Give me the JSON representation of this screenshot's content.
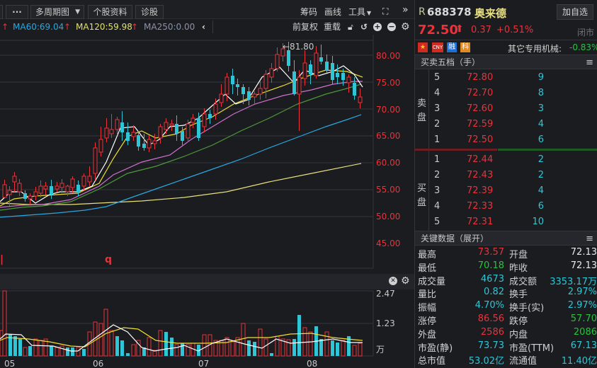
{
  "toolbar": {
    "more_label": "···",
    "multi_period_label": "多周期图",
    "stock_info_label": "个股资料",
    "diagnose_label": "诊股",
    "chips_label": "筹码",
    "draw_label": "画线",
    "tools_label": "工具",
    "expand_glyph": "»"
  },
  "ma_bar": {
    "ma60": "MA60:69.04",
    "ma120": "MA120:59.98",
    "ma250": "MA250:0.00",
    "adjust_label": "前复权",
    "reload_label": "重载",
    "colors": {
      "ma60": "#2aa7e0",
      "ma120": "#e0e06a",
      "ma250": "#8a93a8"
    }
  },
  "chart": {
    "y_ticks": [
      "80.00",
      "75.00",
      "70.00",
      "65.00",
      "60.00",
      "55.00",
      "50.00",
      "45.00"
    ],
    "high_annotation": "←81.80",
    "marker_q": "q",
    "vol_ticks": [
      "2.47",
      "1.23",
      "万"
    ],
    "x_ticks": [
      "05",
      "06",
      "07",
      "08"
    ]
  },
  "chart_data": {
    "type": "candlestick",
    "title": "688378 奥来德 日K",
    "ylim": [
      42,
      83
    ],
    "y_ticks": [
      45,
      50,
      55,
      60,
      65,
      70,
      75,
      80
    ],
    "x_ticks": [
      "05",
      "06",
      "07",
      "08"
    ],
    "annotations": [
      "←81.80"
    ],
    "ma": {
      "MA60": 69.04,
      "MA120": 59.98,
      "MA250": 0.0
    },
    "volume_axis": {
      "ticks": [
        2.47,
        1.23
      ],
      "unit": "万"
    }
  },
  "quote": {
    "prefix": "R",
    "code": "688378",
    "name": "奥来德",
    "add_watch_label": "加自选",
    "price": "72.50",
    "change": "0.37",
    "change_pct": "+0.51%",
    "status": "闭市",
    "badges": [
      "CNY",
      "融",
      "科"
    ],
    "sector": "其它专用机械:",
    "sector_pct": "-0.83%"
  },
  "orderbook": {
    "title": "买卖五档（手）",
    "sell_label": [
      "卖",
      "盘"
    ],
    "buy_label": [
      "买",
      "盘"
    ],
    "sell": [
      {
        "level": "5",
        "price": "72.80",
        "vol": "9"
      },
      {
        "level": "4",
        "price": "72.70",
        "vol": "8"
      },
      {
        "level": "3",
        "price": "72.60",
        "vol": "3"
      },
      {
        "level": "2",
        "price": "72.59",
        "vol": "4"
      },
      {
        "level": "1",
        "price": "72.50",
        "vol": "6"
      }
    ],
    "buy": [
      {
        "level": "1",
        "price": "72.44",
        "vol": "2"
      },
      {
        "level": "2",
        "price": "72.43",
        "vol": "2"
      },
      {
        "level": "3",
        "price": "72.39",
        "vol": "4"
      },
      {
        "level": "4",
        "price": "72.33",
        "vol": "6"
      },
      {
        "level": "5",
        "price": "72.31",
        "vol": "10"
      }
    ]
  },
  "key_data": {
    "title": "关键数据（展开）",
    "rows": [
      {
        "l1": "最高",
        "v1": "73.57",
        "c1": "red",
        "l2": "开盘",
        "v2": "72.13",
        "c2": "white"
      },
      {
        "l1": "最低",
        "v1": "70.18",
        "c1": "green",
        "l2": "昨收",
        "v2": "72.13",
        "c2": "white"
      },
      {
        "l1": "成交量",
        "v1": "4673",
        "c1": "cyan",
        "l2": "成交额",
        "v2": "3353.17万",
        "c2": "cyan"
      },
      {
        "l1": "量比",
        "v1": "0.82",
        "c1": "cyan",
        "l2": "换手",
        "v2": "2.97%",
        "c2": "cyan"
      },
      {
        "l1": "振幅",
        "v1": "4.70%",
        "c1": "cyan",
        "l2": "换手(实)",
        "v2": "2.97%",
        "c2": "cyan"
      },
      {
        "l1": "涨停",
        "v1": "86.56",
        "c1": "red",
        "l2": "跌停",
        "v2": "57.70",
        "c2": "green"
      },
      {
        "l1": "外盘",
        "v1": "2586",
        "c1": "red",
        "l2": "内盘",
        "v2": "2086",
        "c2": "green"
      },
      {
        "l1": "市盈(静)",
        "v1": "73.73",
        "c1": "cyan",
        "l2": "市盈(TTM)",
        "v2": "67.13",
        "c2": "cyan"
      },
      {
        "l1": "总市值",
        "v1": "53.02亿",
        "c1": "cyan",
        "l2": "流通值",
        "v2": "11.40亿",
        "c2": "cyan"
      }
    ]
  }
}
